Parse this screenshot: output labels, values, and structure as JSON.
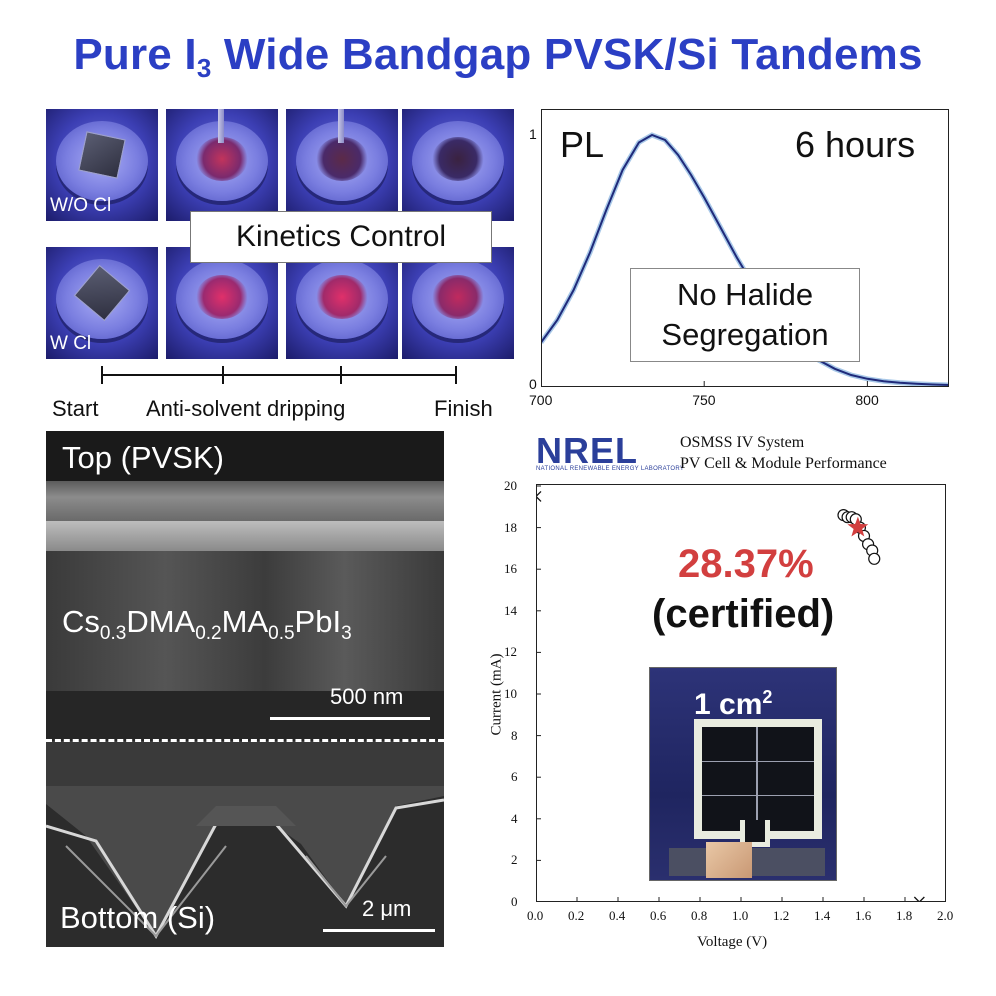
{
  "title": {
    "main": "Pure I",
    "subscript": "3",
    "rest": " Wide Bandgap PVSK/Si Tandems"
  },
  "spin_coating": {
    "rows": [
      {
        "label": "W/O Cl"
      },
      {
        "label": "W Cl"
      }
    ],
    "kinetics_label": "Kinetics Control",
    "timeline": {
      "start": "Start",
      "middle": "Anti-solvent dripping",
      "end": "Finish"
    }
  },
  "sem": {
    "top_label": "Top (PVSK)",
    "composition": {
      "p1": "Cs",
      "s1": "0.3",
      "p2": "DMA",
      "s2": "0.2",
      "p3": "MA",
      "s3": "0.5",
      "p4": "PbI",
      "s4": "3"
    },
    "scale_top": "500 nm",
    "bottom_label": "Bottom (Si)",
    "scale_bottom": "2 μm"
  },
  "chart_data": [
    {
      "type": "line",
      "title": "PL",
      "annotation_time": "6 hours",
      "annotation_box": [
        "No Halide",
        "Segregation"
      ],
      "xlim": [
        700,
        825
      ],
      "ylim": [
        0,
        1
      ],
      "x_ticks": [
        700,
        750,
        800
      ],
      "y_ticks": [
        0,
        1
      ],
      "series": [
        {
          "x": [
            700,
            705,
            710,
            715,
            720,
            725,
            730,
            734,
            738,
            742,
            746,
            750,
            755,
            760,
            765,
            770,
            775,
            780,
            785,
            790,
            795,
            800,
            805,
            810,
            815,
            820,
            825
          ],
          "values": [
            0.17,
            0.26,
            0.38,
            0.53,
            0.7,
            0.86,
            0.97,
            1.0,
            0.98,
            0.92,
            0.84,
            0.75,
            0.63,
            0.51,
            0.4,
            0.3,
            0.22,
            0.15,
            0.1,
            0.065,
            0.04,
            0.025,
            0.015,
            0.009,
            0.005,
            0.002,
            0.0
          ]
        }
      ],
      "colors": {
        "line": "#1f2a7a"
      }
    },
    {
      "type": "scatter",
      "header": {
        "logo": "NREL",
        "logo_sub": "NATIONAL RENEWABLE ENERGY LABORATORY",
        "system": "OSMSS IV System",
        "subtitle": "PV Cell & Module Performance"
      },
      "xlabel": "Voltage (V)",
      "ylabel": "Current (mA)",
      "xlim": [
        0,
        2.0
      ],
      "ylim": [
        0,
        20
      ],
      "x_ticks": [
        0.0,
        0.2,
        0.4,
        0.6,
        0.8,
        1.0,
        1.2,
        1.4,
        1.6,
        1.8,
        2.0
      ],
      "y_ticks": [
        0,
        2,
        4,
        6,
        8,
        10,
        12,
        14,
        16,
        18,
        20
      ],
      "efficiency": "28.37%",
      "certification": "(certified)",
      "cell_area": {
        "value": "1 cm",
        "power": "2"
      },
      "endpoints": [
        {
          "x": 0.0,
          "y": 19.5
        },
        {
          "x": 1.87,
          "y": 0.0
        }
      ],
      "points": [
        {
          "x": 1.5,
          "y": 18.6
        },
        {
          "x": 1.52,
          "y": 18.5
        },
        {
          "x": 1.54,
          "y": 18.5
        },
        {
          "x": 1.56,
          "y": 18.4
        },
        {
          "x": 1.58,
          "y": 18.0
        },
        {
          "x": 1.6,
          "y": 17.6
        },
        {
          "x": 1.62,
          "y": 17.2
        },
        {
          "x": 1.64,
          "y": 16.9
        },
        {
          "x": 1.65,
          "y": 16.5
        }
      ],
      "max_power_point": {
        "x": 1.57,
        "y": 18.0
      },
      "colors": {
        "star": "#d23f3f",
        "markers": "#111111"
      }
    }
  ]
}
